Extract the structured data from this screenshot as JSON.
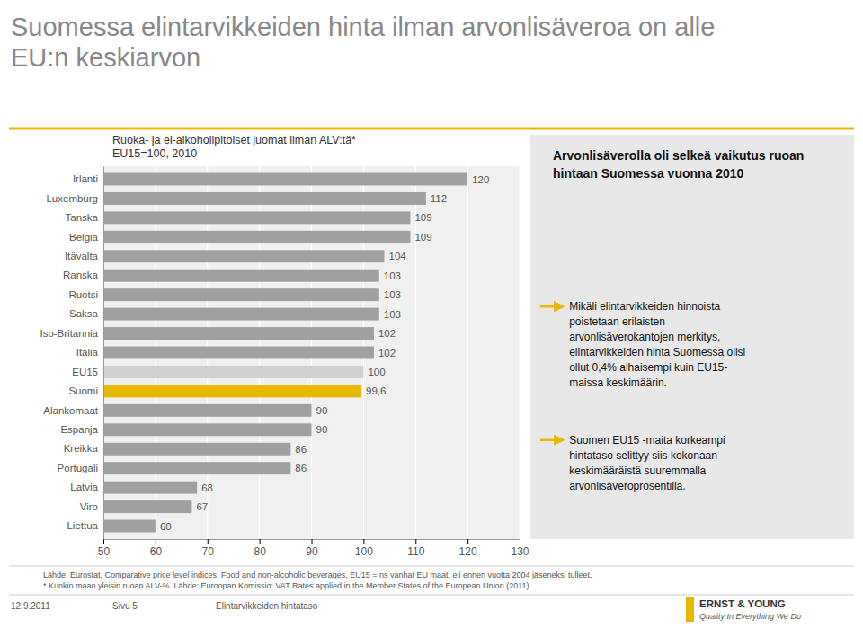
{
  "chart_data": {
    "type": "bar",
    "orientation": "horizontal",
    "title": "Suomessa elintarvikkeiden hinta ilman arvonlisäveroa on alle\nEU:n keskiarvon",
    "subtitle": [
      "Ruoka- ja ei-alkoholipitoiset juomat ilman ALV:tä*",
      "EU15=100, 2010"
    ],
    "categories": [
      "Irlanti",
      "Luxemburg",
      "Tanska",
      "Belgia",
      "Itävalta",
      "Ranska",
      "Ruotsi",
      "Saksa",
      "Iso-Britannia",
      "Italia",
      "EU15",
      "Suomi",
      "Alankomaat",
      "Espanja",
      "Kreikka",
      "Portugali",
      "Latvia",
      "Viro",
      "Liettua"
    ],
    "values": [
      120,
      112,
      109,
      109,
      104,
      103,
      103,
      103,
      102,
      102,
      100,
      99.6,
      90,
      90,
      86,
      86,
      68,
      67,
      60
    ],
    "value_labels": [
      "120",
      "112",
      "109",
      "109",
      "104",
      "103",
      "103",
      "103",
      "102",
      "102",
      "100",
      "99,6",
      "90",
      "90",
      "86",
      "86",
      "68",
      "67",
      "60"
    ],
    "colors": [
      "#a0a0a0",
      "#a0a0a0",
      "#a0a0a0",
      "#a0a0a0",
      "#a0a0a0",
      "#a0a0a0",
      "#a0a0a0",
      "#a0a0a0",
      "#a0a0a0",
      "#a0a0a0",
      "#d0d0d0",
      "#E8B800",
      "#a0a0a0",
      "#a0a0a0",
      "#a0a0a0",
      "#a0a0a0",
      "#a0a0a0",
      "#a0a0a0",
      "#a0a0a0"
    ],
    "xlim": [
      50,
      130
    ],
    "xticks": [
      50,
      60,
      70,
      80,
      90,
      100,
      110,
      120,
      130
    ],
    "grid": true,
    "data_labels": true,
    "annotations": [
      "Arvonlisäverolla oli selkeä vaikutus ruoan hintaan Suomessa vuonna 2010",
      "Mikäli elintarvikkeiden hinnoista\npoistetaan erilaisten\narvonlisäverokantojen merkitys,\nelintarvikkeiden hinta Suomessa olisi\nollut 0,4% alhaisempi kuin EU15-\nmaissa keskimäärin.",
      "Suomen EU15 -maita korkeampi\nhintataso selittyy siis kokonaan\nkeskimääräistä suuremmalla\narvonlisäveroprosentilla.",
      "Lähde: Eurostat, Comparative price level indices, Food and non-alcoholic beverages.  EU15 = ns vanhat EU maat, eli ennen vuotta 2004 jäseneksi tulleet.",
      "* Kunkin maan yleisin ruoan ALV-%. Lähde: Euroopan Komissio: VAT Rates applied in the Member States of the European Union (2011).",
      "12.9.2011",
      "Sivu 5",
      "Elintarvikkeiden hintataso",
      "ERNST & YOUNG",
      "Quality In Everything We Do"
    ]
  }
}
